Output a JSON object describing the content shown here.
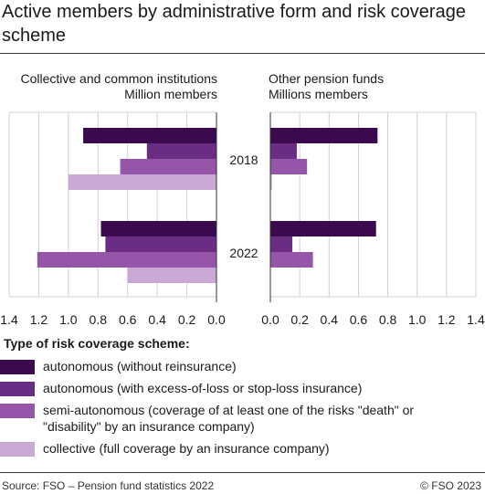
{
  "title": "Active members by administrative form and risk coverage scheme",
  "legend_title": "Type of risk coverage scheme:",
  "footer": {
    "source": "Source: FSO – Pension fund statistics 2022",
    "copyright": "© FSO 2023"
  },
  "colors": {
    "autonomous": "#3b0a4e",
    "excess": "#6b2d84",
    "semi": "#9556aa",
    "collective": "#c9a8d6"
  },
  "chart_data": [
    {
      "type": "bar",
      "orientation": "horizontal",
      "title": "Collective and common institutions",
      "xlabel": "Million members",
      "xlim": [
        0,
        1.4
      ],
      "reversed": true,
      "categories": [
        "2018",
        "2022"
      ],
      "ticks": [
        "1.4",
        "1.2",
        "1.0",
        "0.8",
        "0.6",
        "0.4",
        "0.2",
        "0.0"
      ],
      "series": [
        {
          "name": "autonomous (without reinsurance)",
          "values": [
            0.9,
            0.78
          ]
        },
        {
          "name": "autonomous (with excess-of-loss or stop-loss insurance)",
          "values": [
            0.47,
            0.75
          ]
        },
        {
          "name": "semi-autonomous (coverage of at least one of the risks \"death\" or \"disability\" by an insurance company)",
          "values": [
            0.65,
            1.21
          ]
        },
        {
          "name": "collective (full coverage by an insurance company)",
          "values": [
            1.0,
            0.6
          ]
        }
      ]
    },
    {
      "type": "bar",
      "orientation": "horizontal",
      "title": "Other pension funds",
      "xlabel": "Millions members",
      "xlim": [
        0,
        1.4
      ],
      "categories": [
        "2018",
        "2022"
      ],
      "ticks": [
        "0.0",
        "0.2",
        "0.4",
        "0.6",
        "0.8",
        "1.0",
        "1.2",
        "1.4"
      ],
      "series": [
        {
          "name": "autonomous (without reinsurance)",
          "values": [
            0.73,
            0.72
          ]
        },
        {
          "name": "autonomous (with excess-of-loss or stop-loss insurance)",
          "values": [
            0.18,
            0.15
          ]
        },
        {
          "name": "semi-autonomous (coverage of at least one of the risks \"death\" or \"disability\" by an insurance company)",
          "values": [
            0.25,
            0.29
          ]
        },
        {
          "name": "collective (full coverage by an insurance company)",
          "values": [
            0.01,
            0.0
          ]
        }
      ]
    }
  ],
  "legend": [
    {
      "label": "autonomous (without reinsurance)"
    },
    {
      "label": "autonomous (with excess-of-loss or stop-loss insurance)"
    },
    {
      "label": "semi-autonomous (coverage of at least one of the risks \"death\" or \"disability\" by an insurance company)"
    },
    {
      "label": "collective (full coverage by an insurance company)"
    }
  ]
}
